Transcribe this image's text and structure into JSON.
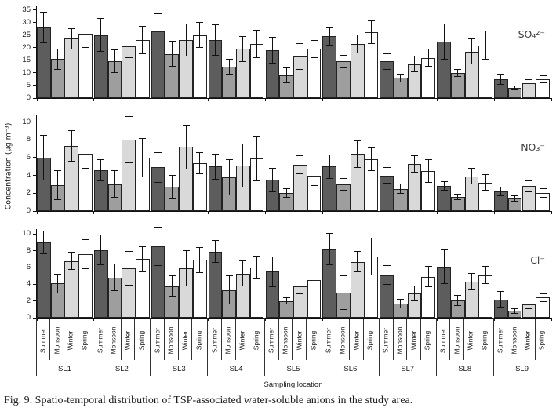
{
  "figure": {
    "caption": "Fig. 9. Spatio-temporal distribution of TSP-associated water-soluble anions in the study area.",
    "ylabel": "Concentration (µg m⁻³)",
    "xlabel": "Sampling location"
  },
  "colors": {
    "summer": "#5d5d5d",
    "monsoon": "#9e9e9e",
    "winter": "#d9d9d9",
    "spring": "#ffffff",
    "bar_border": "#222222",
    "axis": "#111111",
    "separator": "#333333"
  },
  "seasons": [
    "Summer",
    "Monsoon",
    "Winter",
    "Spring"
  ],
  "locations": [
    "SL1",
    "SL2",
    "SL3",
    "SL4",
    "SL5",
    "SL6",
    "SL7",
    "SL8",
    "SL9"
  ],
  "chart_data": [
    {
      "type": "bar",
      "panel_label": "SO₄²⁻",
      "ylabel": "Concentration (µg m⁻³)",
      "ylim": [
        0,
        35
      ],
      "yticks": [
        0,
        5,
        10,
        15,
        20,
        25,
        30,
        35
      ],
      "grid": false,
      "categories": [
        "SL1",
        "SL2",
        "SL3",
        "SL4",
        "SL5",
        "SL6",
        "SL7",
        "SL8",
        "SL9"
      ],
      "series": [
        {
          "name": "Summer",
          "values": [
            28,
            25,
            26.5,
            23,
            19,
            24.5,
            14.5,
            22.5,
            7.5
          ],
          "errors": [
            6,
            6.5,
            7,
            6,
            5,
            3.5,
            3,
            7,
            2
          ]
        },
        {
          "name": "Monsoon",
          "values": [
            15.5,
            14.5,
            17.5,
            12.5,
            9,
            14.5,
            8,
            10,
            4
          ],
          "errors": [
            4,
            4.5,
            5,
            3,
            3,
            2.5,
            1.5,
            1.5,
            0.8
          ]
        },
        {
          "name": "Winter",
          "values": [
            23.5,
            20.5,
            23,
            19.5,
            16.5,
            21.5,
            13.5,
            18.5,
            6
          ],
          "errors": [
            4,
            4.5,
            6.5,
            5,
            5,
            3.5,
            3,
            5,
            1.2
          ]
        },
        {
          "name": "Spring",
          "values": [
            25.5,
            23,
            25,
            21.5,
            19.5,
            26,
            16,
            21,
            7.5
          ],
          "errors": [
            5.5,
            5.5,
            5,
            5.5,
            3.5,
            4.5,
            3.5,
            5.5,
            1.3
          ]
        }
      ]
    },
    {
      "type": "bar",
      "panel_label": "NO₃⁻",
      "ylim": [
        0,
        10
      ],
      "yticks": [
        0,
        2,
        4,
        6,
        8,
        10
      ],
      "grid": false,
      "categories": [
        "SL1",
        "SL2",
        "SL3",
        "SL4",
        "SL5",
        "SL6",
        "SL7",
        "SL8",
        "SL9"
      ],
      "series": [
        {
          "name": "Summer",
          "values": [
            6.0,
            4.6,
            4.9,
            5.0,
            3.5,
            5.0,
            4.0,
            2.8,
            2.2
          ],
          "errors": [
            2.5,
            1.2,
            1.7,
            1.4,
            1.3,
            1.3,
            0.9,
            0.5,
            0.5
          ]
        },
        {
          "name": "Monsoon",
          "values": [
            2.9,
            3.0,
            2.7,
            3.8,
            2.0,
            3.0,
            2.5,
            1.6,
            1.4
          ],
          "errors": [
            1.6,
            1.5,
            1.3,
            2.0,
            0.5,
            0.7,
            0.5,
            0.3,
            0.3
          ]
        },
        {
          "name": "Winter",
          "values": [
            7.3,
            8.0,
            7.2,
            5.1,
            5.2,
            6.4,
            5.3,
            3.9,
            2.8
          ],
          "errors": [
            1.7,
            2.6,
            2.5,
            2.4,
            1.0,
            1.5,
            0.9,
            0.9,
            0.6
          ]
        },
        {
          "name": "Spring",
          "values": [
            6.4,
            6.0,
            5.4,
            5.9,
            4.0,
            5.8,
            4.5,
            3.2,
            2.0
          ],
          "errors": [
            1.6,
            2.2,
            1.2,
            2.5,
            1.1,
            1.3,
            1.3,
            0.9,
            0.5
          ]
        }
      ]
    },
    {
      "type": "bar",
      "panel_label": "Cl⁻",
      "ylim": [
        0,
        10
      ],
      "yticks": [
        0,
        2,
        4,
        6,
        8,
        10
      ],
      "grid": false,
      "categories": [
        "SL1",
        "SL2",
        "SL3",
        "SL4",
        "SL5",
        "SL6",
        "SL7",
        "SL8",
        "SL9"
      ],
      "series": [
        {
          "name": "Summer",
          "values": [
            9.0,
            8.1,
            8.5,
            7.9,
            5.5,
            8.2,
            5.1,
            6.1,
            2.2
          ],
          "errors": [
            1.4,
            1.8,
            2.3,
            1.3,
            1.8,
            1.9,
            1.1,
            2.0,
            0.9
          ]
        },
        {
          "name": "Monsoon",
          "values": [
            4.1,
            4.8,
            3.8,
            3.3,
            2.0,
            3.0,
            1.7,
            2.1,
            0.8
          ],
          "errors": [
            1.1,
            1.6,
            1.2,
            1.7,
            0.4,
            2.0,
            0.5,
            0.6,
            0.3
          ]
        },
        {
          "name": "Winter",
          "values": [
            6.8,
            5.9,
            5.9,
            5.3,
            3.8,
            6.7,
            2.9,
            4.3,
            1.6
          ],
          "errors": [
            1.0,
            2.0,
            2.1,
            1.5,
            0.9,
            1.2,
            0.9,
            1.0,
            0.5
          ]
        },
        {
          "name": "Spring",
          "values": [
            7.6,
            7.0,
            6.9,
            6.0,
            4.5,
            7.3,
            4.9,
            5.1,
            2.4
          ],
          "errors": [
            1.7,
            1.5,
            1.5,
            1.4,
            1.1,
            2.2,
            1.2,
            1.0,
            0.5
          ]
        }
      ]
    }
  ]
}
